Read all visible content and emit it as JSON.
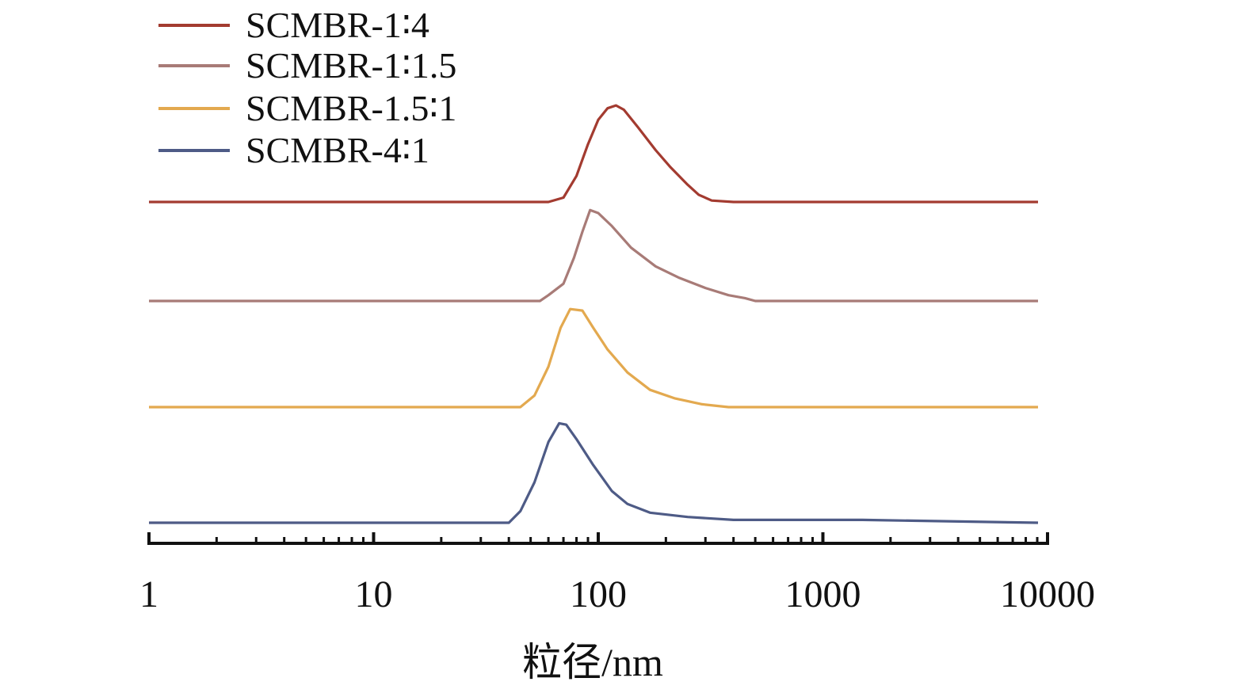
{
  "chart_data": {
    "type": "line",
    "title": "",
    "xlabel": "粒径/nm",
    "ylabel": "",
    "x_scale": "log",
    "xlim": [
      1,
      10000
    ],
    "x_ticks": [
      "1",
      "10",
      "100",
      "1000",
      "10000"
    ],
    "grid": false,
    "legend_position": "top-left",
    "y_axis_visible": false,
    "curves_vertically_offset": true,
    "series": [
      {
        "name": "SCMBR-1∶4",
        "color": "#a33b30",
        "points": [
          [
            1,
            0
          ],
          [
            60,
            0
          ],
          [
            70,
            3
          ],
          [
            80,
            18
          ],
          [
            90,
            40
          ],
          [
            100,
            57
          ],
          [
            110,
            65
          ],
          [
            120,
            67
          ],
          [
            130,
            64
          ],
          [
            150,
            52
          ],
          [
            180,
            36
          ],
          [
            210,
            24
          ],
          [
            250,
            12
          ],
          [
            280,
            5
          ],
          [
            320,
            1
          ],
          [
            400,
            0
          ],
          [
            10000,
            0
          ]
        ]
      },
      {
        "name": "SCMBR-1∶1.5",
        "color": "#a87b77",
        "points": [
          [
            1,
            0
          ],
          [
            55,
            0
          ],
          [
            60,
            4
          ],
          [
            70,
            12
          ],
          [
            78,
            30
          ],
          [
            85,
            48
          ],
          [
            92,
            63
          ],
          [
            100,
            61
          ],
          [
            115,
            52
          ],
          [
            140,
            37
          ],
          [
            180,
            24
          ],
          [
            230,
            16
          ],
          [
            300,
            9
          ],
          [
            380,
            4
          ],
          [
            450,
            2
          ],
          [
            500,
            0
          ],
          [
            10000,
            0
          ]
        ]
      },
      {
        "name": "SCMBR-1.5∶1",
        "color": "#e3a94f",
        "points": [
          [
            1,
            0
          ],
          [
            45,
            0
          ],
          [
            52,
            8
          ],
          [
            60,
            28
          ],
          [
            68,
            55
          ],
          [
            75,
            68
          ],
          [
            85,
            67
          ],
          [
            95,
            55
          ],
          [
            110,
            40
          ],
          [
            135,
            24
          ],
          [
            170,
            12
          ],
          [
            220,
            6
          ],
          [
            290,
            2
          ],
          [
            380,
            0
          ],
          [
            10000,
            0
          ]
        ]
      },
      {
        "name": "SCMBR-4∶1",
        "color": "#4e5b86",
        "points": [
          [
            1,
            0
          ],
          [
            40,
            0
          ],
          [
            45,
            8
          ],
          [
            52,
            28
          ],
          [
            60,
            56
          ],
          [
            67,
            69
          ],
          [
            72,
            68
          ],
          [
            80,
            58
          ],
          [
            95,
            40
          ],
          [
            115,
            22
          ],
          [
            135,
            13
          ],
          [
            170,
            7
          ],
          [
            250,
            4
          ],
          [
            400,
            2
          ],
          [
            1500,
            2
          ],
          [
            10000,
            0
          ]
        ]
      }
    ]
  }
}
